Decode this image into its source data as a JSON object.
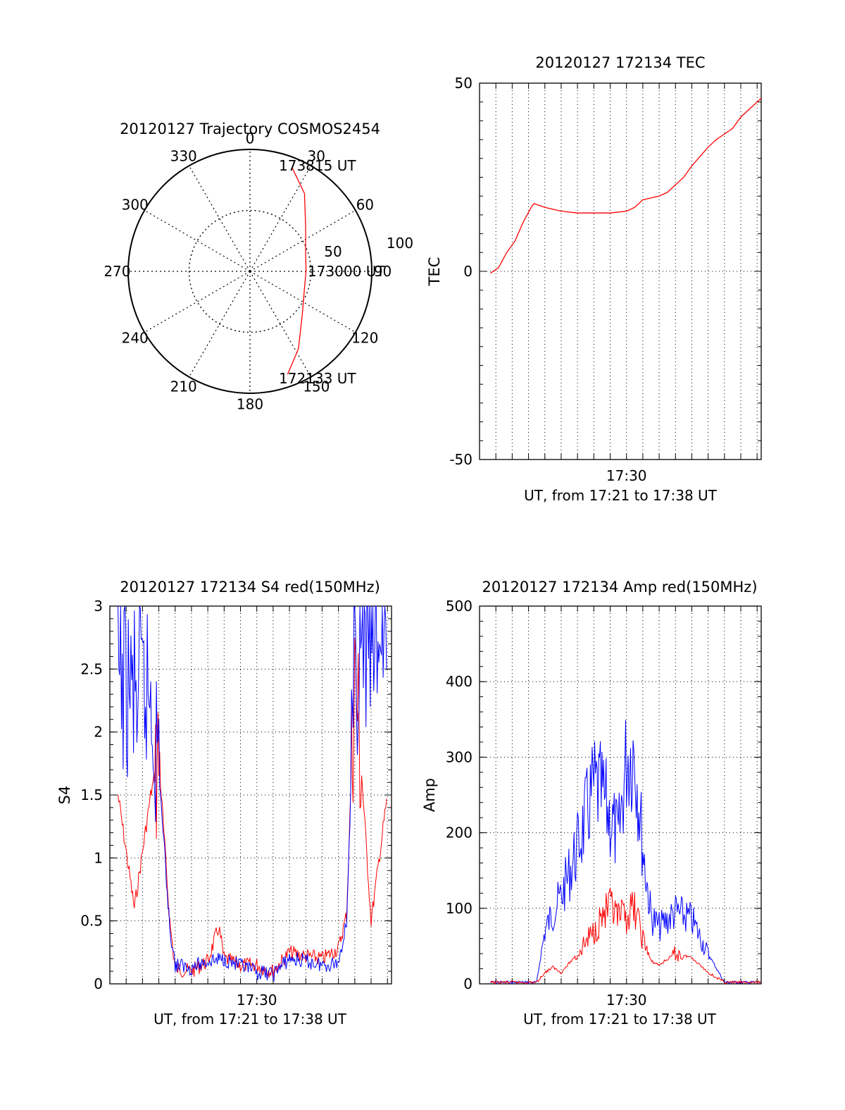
{
  "colors": {
    "red": "#ff0000",
    "blue": "#0000ff",
    "axis": "#000000",
    "grid": "#000000"
  },
  "chart_data": [
    {
      "type": "polar",
      "title": "20120127 Trajectory COSMOS2454",
      "angle_labels": [
        "0",
        "30",
        "60",
        "90",
        "120",
        "150",
        "180",
        "210",
        "240",
        "270",
        "300",
        "330"
      ],
      "radius_labels": [
        "50",
        "100"
      ],
      "rlim": [
        0,
        100
      ],
      "rings": [
        50
      ],
      "grid": true,
      "trajectory": [
        {
          "time": "172133 UT",
          "az": 160,
          "r": 90
        },
        {
          "az": 148,
          "r": 75
        },
        {
          "az": 130,
          "r": 56
        },
        {
          "az": 108,
          "r": 47
        },
        {
          "time": "173000 UT",
          "az": 90,
          "r": 46
        },
        {
          "az": 72,
          "r": 48
        },
        {
          "az": 52,
          "r": 58
        },
        {
          "az": 35,
          "r": 78
        },
        {
          "time": "173815 UT",
          "az": 22,
          "r": 92
        }
      ],
      "annotations": [
        "173815 UT",
        "173000 UT",
        "172133 UT"
      ]
    },
    {
      "type": "line",
      "title": "20120127 172134 TEC",
      "ylabel": "TEC",
      "xlabel": "UT, from 17:21 to 17:38 UT",
      "xlim": [
        "17:21:00",
        "17:38:15"
      ],
      "ylim": [
        -50,
        50
      ],
      "yticks": [
        -50,
        0,
        50
      ],
      "xtick_labels": [
        {
          "t": "17:30",
          "label": "17:30"
        }
      ],
      "grid": true,
      "series": [
        {
          "color": "red",
          "x": [
            "17:21:40",
            "17:22:10",
            "17:22:40",
            "17:23:10",
            "17:23:40",
            "17:24:10",
            "17:24:20",
            "17:25:00",
            "17:26:00",
            "17:27:00",
            "17:28:00",
            "17:29:00",
            "17:30:00",
            "17:30:30",
            "17:31:00",
            "17:31:30",
            "17:32:00",
            "17:32:30",
            "17:33:00",
            "17:33:30",
            "17:34:00",
            "17:34:30",
            "17:35:00",
            "17:35:30",
            "17:36:00",
            "17:36:30",
            "17:37:00",
            "17:37:30",
            "17:38:00",
            "17:38:15"
          ],
          "y": [
            -0.5,
            1,
            5,
            8,
            13,
            17,
            18,
            17,
            16,
            15.5,
            15.5,
            15.5,
            16,
            17,
            19,
            19.5,
            20,
            21,
            23,
            25,
            28,
            30.5,
            33,
            35,
            36.5,
            38,
            41,
            43,
            45,
            46
          ]
        }
      ]
    },
    {
      "type": "line",
      "title": "20120127 172134 S4 red(150MHz)",
      "ylabel": "S4",
      "xlabel": "UT, from 17:21 to 17:38 UT",
      "xlim": [
        "17:21:00",
        "17:38:15"
      ],
      "ylim": [
        0,
        3
      ],
      "yticks": [
        0,
        0.5,
        1,
        1.5,
        2,
        2.5,
        3
      ],
      "ytick_labels": [
        "0",
        "0.5",
        "1",
        "1.5",
        "2",
        "2.5",
        "3"
      ],
      "xtick_labels": [
        {
          "t": "17:30",
          "label": "17:30"
        }
      ],
      "grid": true,
      "series": [
        {
          "color": "red",
          "x": [
            "17:21:30",
            "17:22:30",
            "17:23:30",
            "17:24:00",
            "17:24:40",
            "17:25:00",
            "17:26:00",
            "17:27:00",
            "17:27:40",
            "17:28:00",
            "17:29:00",
            "17:30:00",
            "17:30:30",
            "17:31:00",
            "17:32:00",
            "17:33:00",
            "17:34:00",
            "17:35:00",
            "17:35:30",
            "17:36:00",
            "17:37:00",
            "17:38:00"
          ],
          "y": [
            1.5,
            0.6,
            1.5,
            1.8,
            0.5,
            0.12,
            0.1,
            0.18,
            0.45,
            0.2,
            0.15,
            0.15,
            0.12,
            0.1,
            0.25,
            0.22,
            0.2,
            0.28,
            0.55,
            2.5,
            0.5,
            1.5
          ]
        },
        {
          "color": "blue",
          "x": [
            "17:21:30",
            "17:22:30",
            "17:23:30",
            "17:24:00",
            "17:24:40",
            "17:25:00",
            "17:26:00",
            "17:27:00",
            "17:28:00",
            "17:29:00",
            "17:30:00",
            "17:31:00",
            "17:32:00",
            "17:33:00",
            "17:34:00",
            "17:35:00",
            "17:35:30",
            "17:36:00",
            "17:37:00",
            "17:38:00"
          ],
          "y": [
            2.4,
            2.3,
            2.3,
            1.7,
            0.45,
            0.15,
            0.13,
            0.18,
            0.2,
            0.14,
            0.09,
            0.08,
            0.2,
            0.18,
            0.15,
            0.17,
            0.5,
            2.5,
            2.7,
            2.8
          ]
        }
      ]
    },
    {
      "type": "line",
      "title": "20120127 172134 Amp red(150MHz)",
      "ylabel": "Amp",
      "xlabel": "UT, from 17:21 to 17:38 UT",
      "xlim": [
        "17:21:00",
        "17:38:15"
      ],
      "ylim": [
        0,
        500
      ],
      "yticks": [
        0,
        100,
        200,
        300,
        400,
        500
      ],
      "xtick_labels": [
        {
          "t": "17:30",
          "label": "17:30"
        }
      ],
      "grid": true,
      "series": [
        {
          "color": "blue",
          "x": [
            "17:21:40",
            "17:24:30",
            "17:25:00",
            "17:25:30",
            "17:26:00",
            "17:27:00",
            "17:28:00",
            "17:28:30",
            "17:29:00",
            "17:29:30",
            "17:30:00",
            "17:30:30",
            "17:31:00",
            "17:31:30",
            "17:32:00",
            "17:33:00",
            "17:34:00",
            "17:35:00",
            "17:36:00",
            "17:37:00",
            "17:38:15"
          ],
          "y": [
            2,
            2,
            70,
            95,
            115,
            180,
            260,
            250,
            220,
            190,
            300,
            310,
            180,
            90,
            75,
            95,
            85,
            40,
            2,
            2,
            2
          ]
        },
        {
          "color": "red",
          "x": [
            "17:21:40",
            "17:24:30",
            "17:25:00",
            "17:25:30",
            "17:26:00",
            "17:27:00",
            "17:28:00",
            "17:28:30",
            "17:29:00",
            "17:29:30",
            "17:30:00",
            "17:30:30",
            "17:31:00",
            "17:31:30",
            "17:32:00",
            "17:33:00",
            "17:34:00",
            "17:35:00",
            "17:36:00",
            "17:37:00",
            "17:38:15"
          ],
          "y": [
            2,
            2,
            15,
            22,
            15,
            40,
            70,
            90,
            100,
            85,
            90,
            100,
            60,
            30,
            25,
            40,
            35,
            15,
            2,
            2,
            2
          ]
        }
      ]
    }
  ]
}
